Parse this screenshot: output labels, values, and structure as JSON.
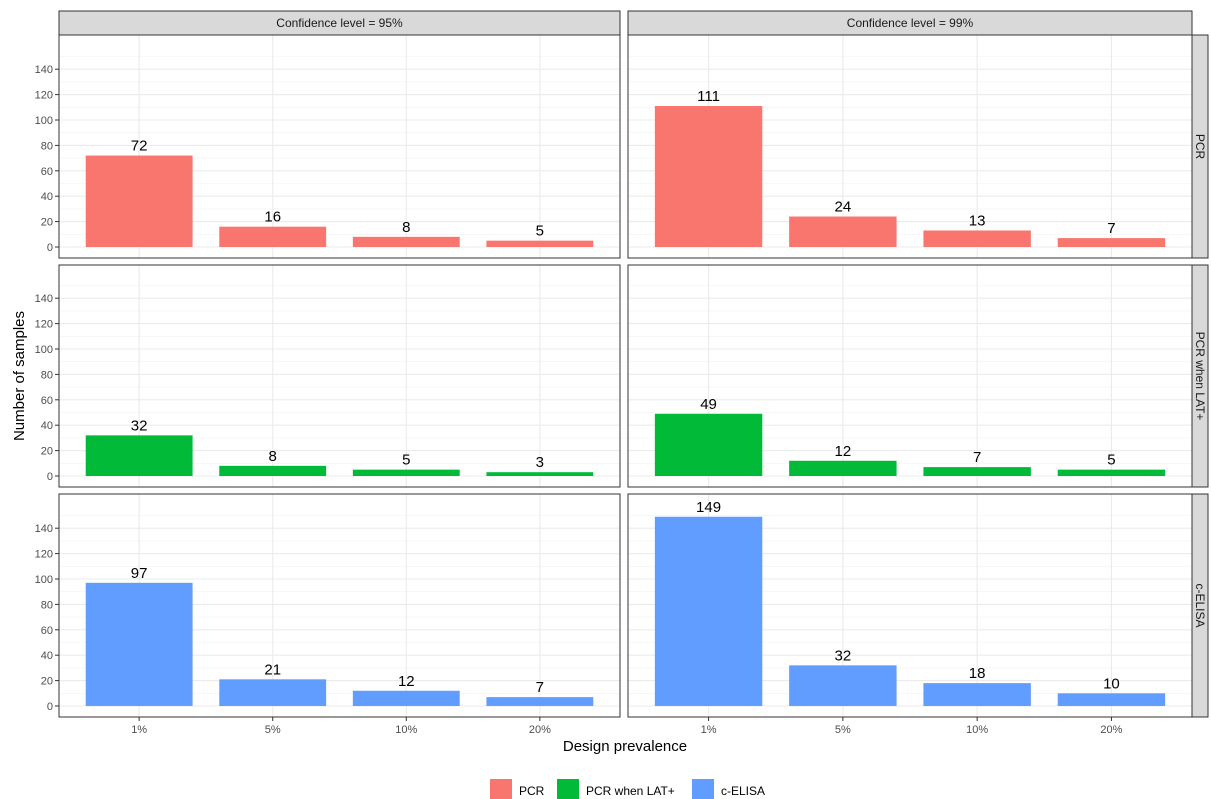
{
  "chart_data": {
    "type": "bar",
    "facets": {
      "columns": [
        "Confidence level = 95%",
        "Confidence level = 99%"
      ],
      "rows": [
        "PCR",
        "PCR when LAT+",
        "c-ELISA"
      ]
    },
    "categories": [
      "1%",
      "5%",
      "10%",
      "20%"
    ],
    "series": [
      {
        "name": "PCR",
        "color": "#F8766D",
        "values_95": [
          72,
          16,
          8,
          5
        ],
        "values_99": [
          111,
          24,
          13,
          7
        ]
      },
      {
        "name": "PCR when LAT+",
        "color": "#00BA38",
        "values_95": [
          32,
          8,
          5,
          3
        ],
        "values_99": [
          49,
          12,
          7,
          5
        ]
      },
      {
        "name": "c-ELISA",
        "color": "#619CFF",
        "values_95": [
          97,
          21,
          12,
          7
        ],
        "values_99": [
          149,
          32,
          18,
          10
        ]
      }
    ],
    "yticks": [
      0,
      20,
      40,
      60,
      80,
      100,
      120,
      140
    ],
    "ylim": [
      0,
      160
    ],
    "xlabel": "Design prevalence",
    "ylabel": "Number of samples",
    "legend_position": "bottom",
    "grid": true,
    "theme": "bw"
  }
}
